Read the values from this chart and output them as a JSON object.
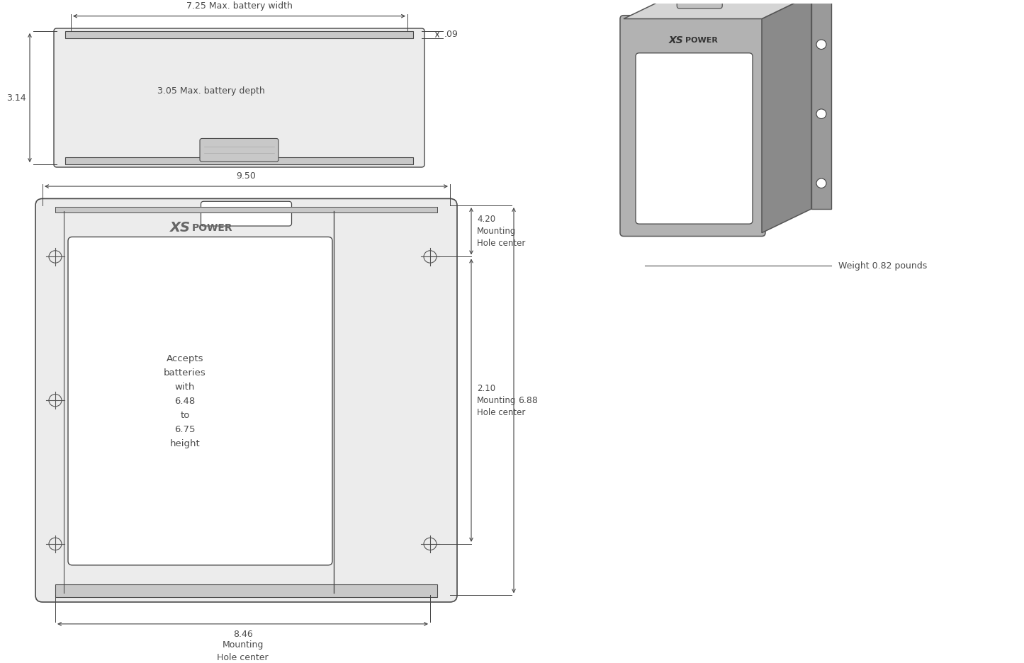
{
  "bg_color": "#ffffff",
  "line_color": "#4a4a4a",
  "dim_color": "#4a4a4a",
  "fill_light": "#ececec",
  "fill_mid": "#c8c8c8",
  "fill_dark": "#888888",
  "top_view_label_width": "7.25 Max. battery width",
  "top_view_label_depth": "3.05 Max. battery depth",
  "top_view_label_height": "3.14",
  "top_view_label_thick": ".09",
  "front_view_label_width": "9.50",
  "front_view_label_mhc": "8.46",
  "front_view_label_mhc2": "Mounting\nHole center",
  "front_view_label_height": "6.88",
  "front_view_label_mh_top": "4.20\nMounting\nHole center",
  "front_view_label_mh_mid": "2.10\nMounting\nHole center",
  "front_view_text_accepts": "Accepts\nbatteries\nwith\n6.48\nto\n6.75\nheight",
  "weight_label": "Weight 0.82 pounds"
}
